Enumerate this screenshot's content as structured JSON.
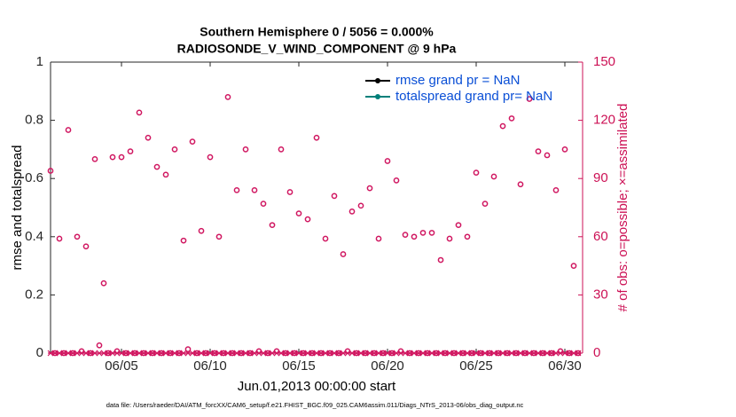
{
  "chart_data": {
    "type": "scatter",
    "title": "Southern Hemisphere 0 / 5056 = 0.000%",
    "subtitle": "RADIOSONDE_V_WIND_COMPONENT @ 9 hPa",
    "x_label": "Jun.01,2013 00:00:00 start",
    "y_label": "rmse and totalspread",
    "y2_label": "# of obs: o=possible; ×=assimilated",
    "footnote": "data file: /Users/raeder/DAI/ATM_forcXX/CAM6_setup/f.e21.FHIST_BGC.f09_025.CAM6assim.011/Diags_NTrS_2013-06/obs_diag_output.nc",
    "xlim": [
      0,
      30
    ],
    "xticks": [
      {
        "value": 4,
        "label": "06/05"
      },
      {
        "value": 9,
        "label": "06/10"
      },
      {
        "value": 14,
        "label": "06/15"
      },
      {
        "value": 19,
        "label": "06/20"
      },
      {
        "value": 24,
        "label": "06/25"
      },
      {
        "value": 29,
        "label": "06/30"
      }
    ],
    "ylim": [
      0,
      1
    ],
    "yticks": [
      0,
      0.2,
      0.4,
      0.6,
      0.8,
      1
    ],
    "y2lim": [
      0,
      150
    ],
    "y2ticks": [
      0,
      30,
      60,
      90,
      120,
      150
    ],
    "y2_color": "#cc1155",
    "series": [
      {
        "name": "rmse grand pr = NaN",
        "color": "#000000"
      },
      {
        "name": "totalspread grand pr= NaN",
        "color": "#00807a"
      }
    ],
    "legend_text_color": "#0a4fd6",
    "x": [
      0,
      0.25,
      0.5,
      0.75,
      1,
      1.25,
      1.5,
      1.75,
      2,
      2.25,
      2.5,
      2.75,
      3,
      3.25,
      3.5,
      3.75,
      4,
      4.25,
      4.5,
      4.75,
      5,
      5.25,
      5.5,
      5.75,
      6,
      6.25,
      6.5,
      6.75,
      7,
      7.25,
      7.5,
      7.75,
      8,
      8.25,
      8.5,
      8.75,
      9,
      9.25,
      9.5,
      9.75,
      10,
      10.25,
      10.5,
      10.75,
      11,
      11.25,
      11.5,
      11.75,
      12,
      12.25,
      12.5,
      12.75,
      13,
      13.25,
      13.5,
      13.75,
      14,
      14.25,
      14.5,
      14.75,
      15,
      15.25,
      15.5,
      15.75,
      16,
      16.25,
      16.5,
      16.75,
      17,
      17.25,
      17.5,
      17.75,
      18,
      18.25,
      18.5,
      18.75,
      19,
      19.25,
      19.5,
      19.75,
      20,
      20.25,
      20.5,
      20.75,
      21,
      21.25,
      21.5,
      21.75,
      22,
      22.25,
      22.5,
      22.75,
      23,
      23.25,
      23.5,
      23.75,
      24,
      24.25,
      24.5,
      24.75,
      25,
      25.25,
      25.5,
      25.75,
      26,
      26.25,
      26.5,
      26.75,
      27,
      27.25,
      27.5,
      27.75,
      28,
      28.25,
      28.5,
      28.75,
      29,
      29.25,
      29.5,
      29.75
    ],
    "obs_possible": {
      "axis": "y2",
      "color": "#d01660",
      "values": [
        94,
        0,
        59,
        0,
        115,
        0,
        60,
        1,
        55,
        0,
        100,
        4,
        36,
        0,
        101,
        1,
        101,
        0,
        104,
        0,
        124,
        0,
        111,
        0,
        96,
        0,
        92,
        0,
        105,
        0,
        58,
        2,
        109,
        0,
        63,
        0,
        101,
        0,
        60,
        0,
        132,
        0,
        84,
        0,
        105,
        0,
        84,
        1,
        77,
        0,
        66,
        1,
        105,
        0,
        83,
        0,
        72,
        0,
        69,
        0,
        111,
        0,
        59,
        0,
        81,
        0,
        51,
        1,
        73,
        0,
        76,
        0,
        85,
        0,
        59,
        0,
        99,
        0,
        89,
        1,
        61,
        0,
        60,
        0,
        62,
        0,
        62,
        0,
        48,
        0,
        59,
        0,
        66,
        0,
        60,
        0,
        93,
        0,
        77,
        0,
        91,
        0,
        117,
        0,
        121,
        0,
        87,
        0,
        131,
        0,
        104,
        0,
        102,
        0,
        84,
        1,
        105,
        0,
        45,
        0
      ]
    },
    "obs_assimilated": {
      "axis": "y2",
      "color": "#d01660",
      "values": [
        0,
        0,
        0,
        0,
        0,
        0,
        0,
        0,
        0,
        0,
        0,
        0,
        0,
        0,
        0,
        0,
        0,
        0,
        0,
        0,
        0,
        0,
        0,
        0,
        0,
        0,
        0,
        0,
        0,
        0,
        0,
        0,
        0,
        0,
        0,
        0,
        0,
        0,
        0,
        0,
        0,
        0,
        0,
        0,
        0,
        0,
        0,
        0,
        0,
        0,
        0,
        0,
        0,
        0,
        0,
        0,
        0,
        0,
        0,
        0,
        0,
        0,
        0,
        0,
        0,
        0,
        0,
        0,
        0,
        0,
        0,
        0,
        0,
        0,
        0,
        0,
        0,
        0,
        0,
        0,
        0,
        0,
        0,
        0,
        0,
        0,
        0,
        0,
        0,
        0,
        0,
        0,
        0,
        0,
        0,
        0,
        0,
        0,
        0,
        0,
        0,
        0,
        0,
        0,
        0,
        0,
        0,
        0,
        0,
        0,
        0,
        0,
        0,
        0,
        0,
        0,
        0,
        0,
        0,
        0
      ]
    }
  }
}
